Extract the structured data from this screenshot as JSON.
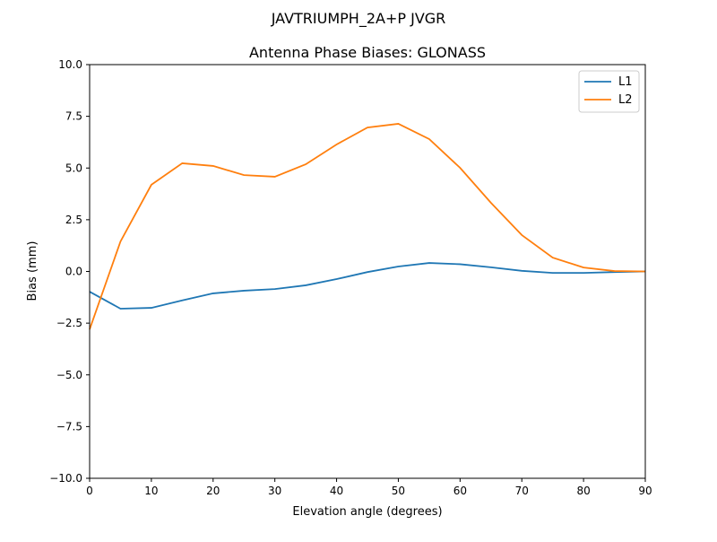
{
  "chart_data": {
    "type": "line",
    "suptitle": "JAVTRIUMPH_2A+P JVGR",
    "title": "Antenna Phase Biases: GLONASS",
    "xlabel": "Elevation angle (degrees)",
    "ylabel": "Bias (mm)",
    "xlim": [
      0,
      90
    ],
    "ylim": [
      -10,
      10
    ],
    "xticks": [
      "0",
      "10",
      "20",
      "30",
      "40",
      "50",
      "60",
      "70",
      "80",
      "90"
    ],
    "yticks": [
      "10.0",
      "7.5",
      "5.0",
      "2.5",
      "0.0",
      "−2.5",
      "−5.0",
      "−7.5",
      "−10.0"
    ],
    "grid": false,
    "legend_position": "top-right",
    "x": [
      0,
      5,
      10,
      15,
      20,
      25,
      30,
      35,
      40,
      45,
      50,
      55,
      60,
      65,
      70,
      75,
      80,
      85,
      90
    ],
    "series": [
      {
        "name": "L1",
        "color": "#1f77b4",
        "values": [
          -0.98,
          -1.8,
          -1.76,
          -1.4,
          -1.06,
          -0.93,
          -0.85,
          -0.67,
          -0.37,
          -0.03,
          0.24,
          0.41,
          0.35,
          0.2,
          0.03,
          -0.07,
          -0.07,
          -0.03,
          0
        ]
      },
      {
        "name": "L2",
        "color": "#ff7f0e",
        "values": [
          -2.8,
          1.45,
          4.19,
          5.23,
          5.1,
          4.66,
          4.58,
          5.18,
          6.14,
          6.96,
          7.14,
          6.4,
          5.01,
          3.32,
          1.76,
          0.67,
          0.19,
          0.02,
          0
        ]
      }
    ]
  }
}
